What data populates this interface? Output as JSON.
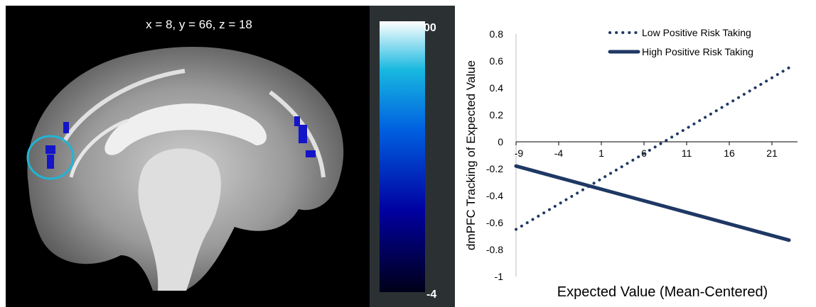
{
  "brain_figure": {
    "coordinates_label": "x = 8, y = 66, z = 18",
    "colorbar": {
      "top_label": "00",
      "bottom_label": "-4",
      "colors": [
        "#000018",
        "#0000a0",
        "#0060e0",
        "#18b8e0",
        "#ffffff"
      ]
    },
    "highlight_color": "#1fb5d6",
    "cluster_color": "#1414c8"
  },
  "chart_data": {
    "type": "line",
    "title": "",
    "xlabel": "Expected Value (Mean-Centered)",
    "ylabel": "dmPFC Tracking of Expected Value",
    "xlim": [
      -9,
      24
    ],
    "ylim": [
      -1,
      0.8
    ],
    "x_ticks": [
      -9,
      -4,
      1,
      6,
      11,
      16,
      21
    ],
    "y_ticks": [
      0.8,
      0.6,
      0.4,
      0.2,
      0,
      -0.2,
      -0.4,
      -0.6,
      -0.8,
      -1
    ],
    "series": [
      {
        "name": "Low Positive Risk Taking",
        "style": "dotted",
        "color": "#1f3864",
        "x": [
          -9,
          23
        ],
        "y": [
          -0.65,
          0.55
        ]
      },
      {
        "name": "High Positive Risk Taking",
        "style": "solid",
        "color": "#1f3864",
        "x": [
          -9,
          23
        ],
        "y": [
          -0.18,
          -0.73
        ]
      }
    ],
    "legend_position": "top-right"
  }
}
